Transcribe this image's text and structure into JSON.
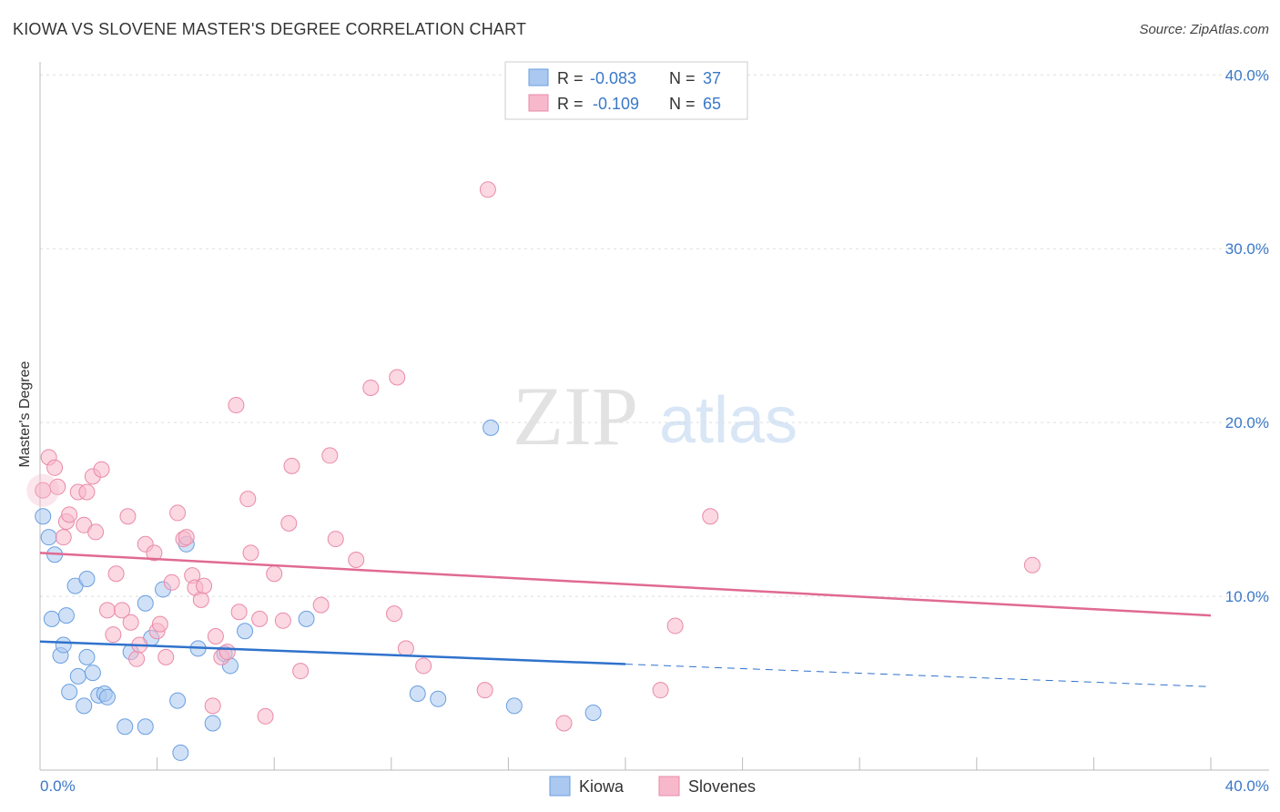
{
  "title": "KIOWA VS SLOVENE MASTER'S DEGREE CORRELATION CHART",
  "source": "Source: ZipAtlas.com",
  "watermark": {
    "zip": "ZIP",
    "atlas": "atlas"
  },
  "colors": {
    "kiowa_fill": "#aac8f0",
    "kiowa_stroke": "#6a9ee0",
    "kiowa_line": "#2f72cc",
    "slovenes_fill": "#f7b8cb",
    "slovenes_stroke": "#ea8aa8",
    "slovenes_line": "#e06a92",
    "axis_label": "#3a78c8",
    "grid": "#dddddd"
  },
  "legend_top": [
    {
      "series": "Kiowa",
      "r_label": "R =",
      "r_value": "-0.083",
      "n_label": "N =",
      "n_value": "37"
    },
    {
      "series": "Slovenes",
      "r_label": "R =",
      "r_value": "-0.109",
      "n_label": "N =",
      "n_value": "65"
    }
  ],
  "chart_data": {
    "type": "scatter",
    "title": "KIOWA VS SLOVENE MASTER'S DEGREE CORRELATION CHART",
    "xlabel": "",
    "ylabel": "Master's Degree",
    "xlim": [
      0,
      40
    ],
    "ylim": [
      0,
      40
    ],
    "x_tick_labels": [
      "0.0%",
      "40.0%"
    ],
    "y_ticks": [
      {
        "value": 10,
        "label": "10.0%"
      },
      {
        "value": 20,
        "label": "20.0%"
      },
      {
        "value": 30,
        "label": "30.0%"
      },
      {
        "value": 40,
        "label": "40.0%"
      }
    ],
    "series": [
      {
        "name": "Kiowa",
        "r": -0.083,
        "n": 37,
        "trend": {
          "x0": 0,
          "y0": 7.4,
          "x1": 20,
          "y1": 6.1,
          "x_end": 40,
          "y_end": 4.8
        },
        "points": [
          [
            0.1,
            14.6
          ],
          [
            0.3,
            13.4
          ],
          [
            0.5,
            12.4
          ],
          [
            0.4,
            8.7
          ],
          [
            0.7,
            6.6
          ],
          [
            0.8,
            7.2
          ],
          [
            0.9,
            8.9
          ],
          [
            1.0,
            4.5
          ],
          [
            1.2,
            10.6
          ],
          [
            1.3,
            5.4
          ],
          [
            1.5,
            3.7
          ],
          [
            1.6,
            6.5
          ],
          [
            1.6,
            11.0
          ],
          [
            1.8,
            5.6
          ],
          [
            2.0,
            4.3
          ],
          [
            2.2,
            4.4
          ],
          [
            2.3,
            4.2
          ],
          [
            2.9,
            2.5
          ],
          [
            3.1,
            6.8
          ],
          [
            3.6,
            2.5
          ],
          [
            3.6,
            9.6
          ],
          [
            3.8,
            7.6
          ],
          [
            4.2,
            10.4
          ],
          [
            4.7,
            4.0
          ],
          [
            4.8,
            1.0
          ],
          [
            5.0,
            13.0
          ],
          [
            5.4,
            7.0
          ],
          [
            5.9,
            2.7
          ],
          [
            6.3,
            6.7
          ],
          [
            6.5,
            6.0
          ],
          [
            7.0,
            8.0
          ],
          [
            9.1,
            8.7
          ],
          [
            12.9,
            4.4
          ],
          [
            13.6,
            4.1
          ],
          [
            15.4,
            19.7
          ],
          [
            16.2,
            3.7
          ],
          [
            18.9,
            3.3
          ]
        ]
      },
      {
        "name": "Slovenes",
        "r": -0.109,
        "n": 65,
        "trend": {
          "x0": 0,
          "y0": 12.5,
          "x1": 40,
          "y1": 8.9
        },
        "points": [
          [
            0.1,
            16.1
          ],
          [
            0.3,
            18.0
          ],
          [
            0.5,
            17.4
          ],
          [
            0.6,
            16.3
          ],
          [
            0.8,
            13.4
          ],
          [
            0.9,
            14.3
          ],
          [
            1.0,
            14.7
          ],
          [
            1.3,
            16.0
          ],
          [
            1.5,
            14.1
          ],
          [
            1.6,
            16.0
          ],
          [
            1.8,
            16.9
          ],
          [
            1.9,
            13.7
          ],
          [
            2.1,
            17.3
          ],
          [
            2.3,
            9.2
          ],
          [
            2.5,
            7.8
          ],
          [
            2.6,
            11.3
          ],
          [
            2.8,
            9.2
          ],
          [
            3.0,
            14.6
          ],
          [
            3.1,
            8.5
          ],
          [
            3.3,
            6.4
          ],
          [
            3.4,
            7.2
          ],
          [
            3.6,
            13.0
          ],
          [
            3.9,
            12.5
          ],
          [
            4.0,
            8.0
          ],
          [
            4.1,
            8.4
          ],
          [
            4.3,
            6.5
          ],
          [
            4.5,
            10.8
          ],
          [
            4.7,
            14.8
          ],
          [
            4.9,
            13.3
          ],
          [
            5.0,
            13.4
          ],
          [
            5.2,
            11.2
          ],
          [
            5.3,
            10.5
          ],
          [
            5.5,
            9.8
          ],
          [
            5.6,
            10.6
          ],
          [
            5.9,
            3.7
          ],
          [
            6.0,
            7.7
          ],
          [
            6.2,
            6.5
          ],
          [
            6.4,
            6.8
          ],
          [
            6.7,
            21.0
          ],
          [
            6.8,
            9.1
          ],
          [
            7.1,
            15.6
          ],
          [
            7.2,
            12.5
          ],
          [
            7.5,
            8.7
          ],
          [
            7.7,
            3.1
          ],
          [
            8.0,
            11.3
          ],
          [
            8.3,
            8.6
          ],
          [
            8.5,
            14.2
          ],
          [
            8.6,
            17.5
          ],
          [
            8.9,
            5.7
          ],
          [
            9.6,
            9.5
          ],
          [
            9.9,
            18.1
          ],
          [
            10.1,
            13.3
          ],
          [
            10.8,
            12.1
          ],
          [
            11.3,
            22.0
          ],
          [
            12.2,
            22.6
          ],
          [
            12.1,
            9.0
          ],
          [
            12.5,
            7.0
          ],
          [
            13.1,
            6.0
          ],
          [
            15.2,
            4.6
          ],
          [
            15.3,
            33.4
          ],
          [
            17.9,
            2.7
          ],
          [
            21.2,
            4.6
          ],
          [
            21.7,
            8.3
          ],
          [
            22.9,
            14.6
          ],
          [
            33.9,
            11.8
          ]
        ]
      }
    ],
    "legend": [
      "Kiowa",
      "Slovenes"
    ],
    "legend_position": "bottom"
  }
}
